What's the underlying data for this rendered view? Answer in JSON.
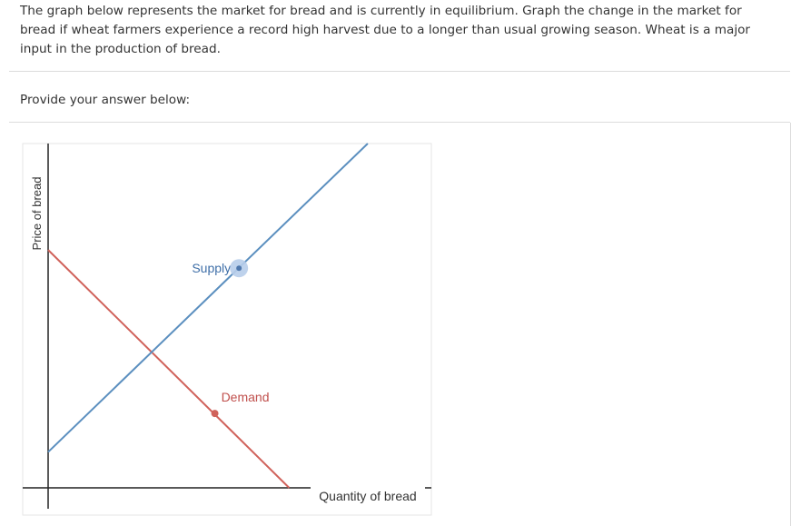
{
  "question": {
    "text": "The graph below represents the market for bread and is currently in equilibrium. Graph the change in the market for bread if wheat farmers experience a record high harvest due to a longer than usual growing season. Wheat is a major input in the production of bread."
  },
  "answer": {
    "prompt": "Provide your answer below:"
  },
  "chart_data": {
    "type": "line",
    "xlabel": "Quantity of bread",
    "ylabel": "Price of bread",
    "xlim": [
      0,
      100
    ],
    "ylim": [
      0,
      100
    ],
    "grid": false,
    "series": [
      {
        "name": "Supply",
        "color": "#5b8fbf",
        "points": [
          [
            0,
            10.4
          ],
          [
            83.4,
            100
          ]
        ],
        "handle": [
          49.8,
          63.8
        ],
        "handle_color": "#b7cdea",
        "label_position": "left-of-handle"
      },
      {
        "name": "Demand",
        "color": "#d0625b",
        "points": [
          [
            0,
            69.1
          ],
          [
            62.9,
            0
          ]
        ],
        "handle": [
          43.5,
          21.6
        ],
        "handle_color": "#d0625b",
        "label_position": "above-right-of-handle"
      }
    ]
  }
}
